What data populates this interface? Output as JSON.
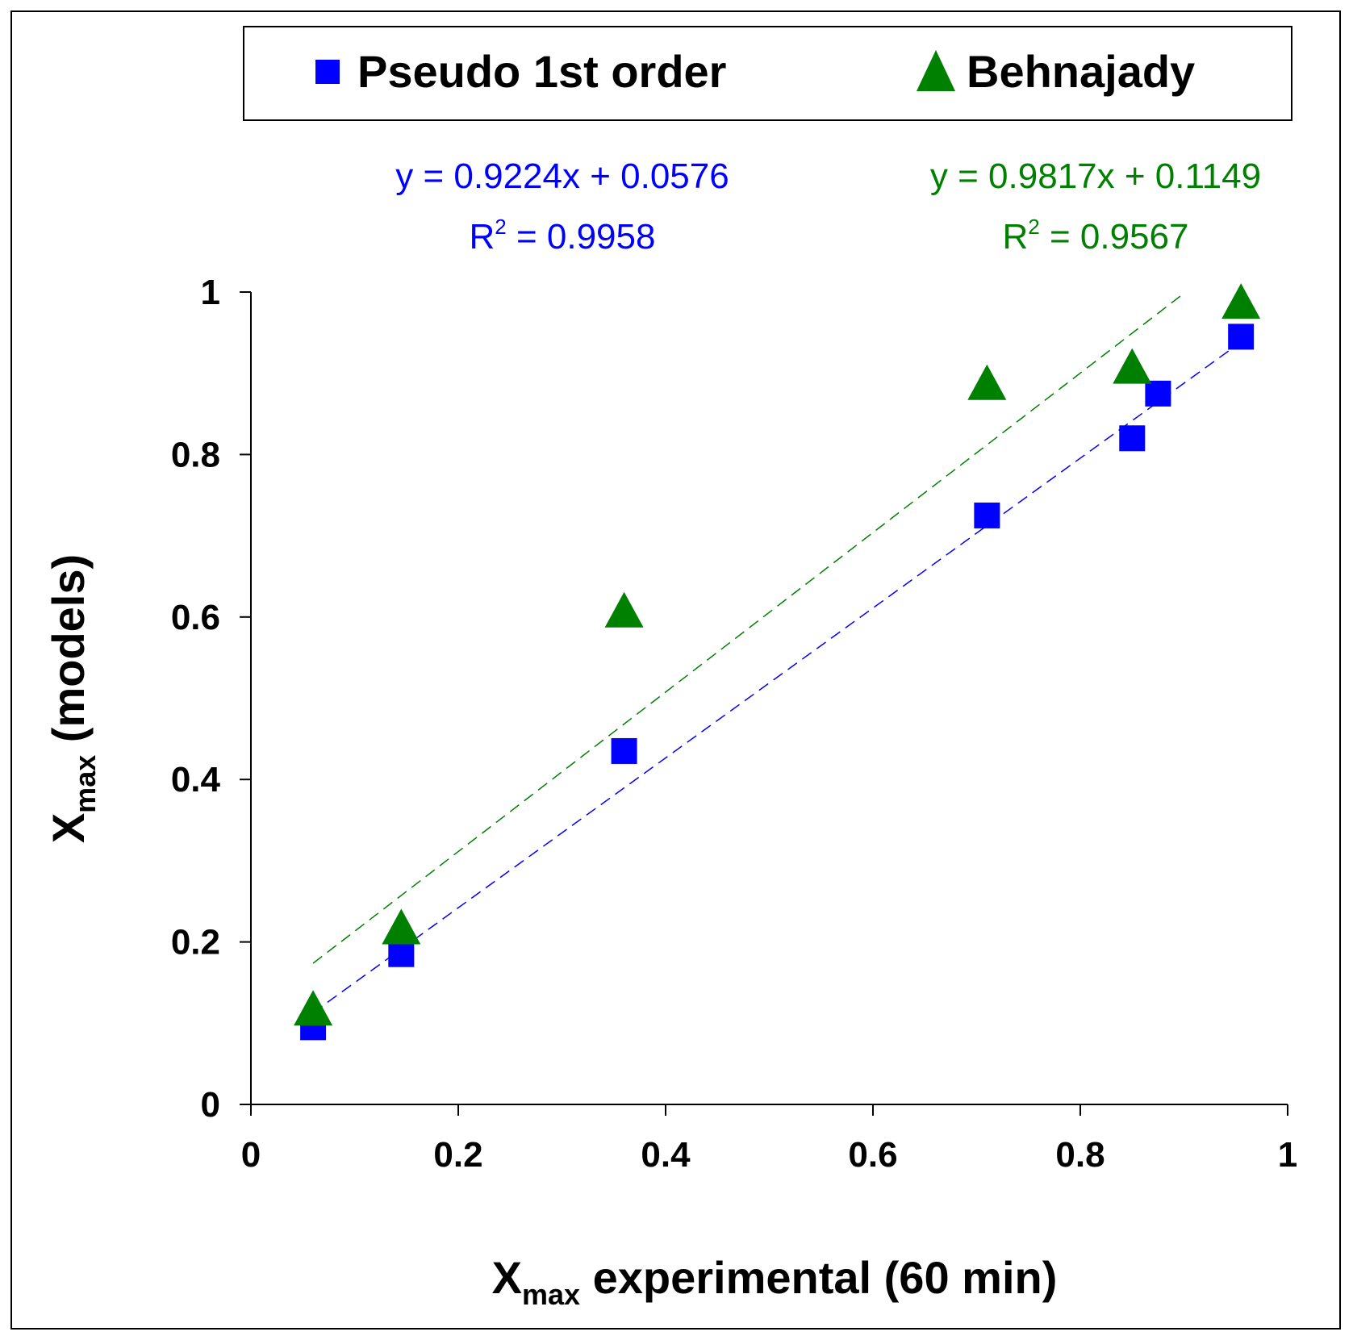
{
  "chart_data": {
    "type": "scatter",
    "xlabel": {
      "main": "X",
      "sub": "max",
      "rest": " experimental (60 min)"
    },
    "ylabel": {
      "main": "X",
      "sub": "max",
      "rest": " (models)"
    },
    "xlim": [
      0,
      1
    ],
    "ylim": [
      0,
      1
    ],
    "x_ticks": [
      0,
      0.2,
      0.4,
      0.6,
      0.8,
      1
    ],
    "y_ticks": [
      0,
      0.2,
      0.4,
      0.6,
      0.8,
      1
    ],
    "x_tick_labels": [
      "0",
      "0.2",
      "0.4",
      "0.6",
      "0.8",
      "1"
    ],
    "y_tick_labels": [
      "0",
      "0.2",
      "0.4",
      "0.6",
      "0.8",
      "1"
    ],
    "grid": false,
    "legend_position": "top",
    "series": [
      {
        "name": "Pseudo 1st order",
        "marker": "square",
        "color": "#0000ff",
        "x": [
          0.06,
          0.145,
          0.36,
          0.71,
          0.85,
          0.875,
          0.955
        ],
        "y": [
          0.095,
          0.185,
          0.435,
          0.725,
          0.82,
          0.875,
          0.945
        ],
        "trendline": {
          "slope": 0.9224,
          "intercept": 0.0576,
          "x_range": [
            0.06,
            0.955
          ]
        },
        "equation": "y = 0.9224x + 0.0576",
        "r2_prefix": "R",
        "r2_sup": "2",
        "r2_value": " = 0.9958"
      },
      {
        "name": "Behnajady",
        "marker": "triangle",
        "color": "#008000",
        "x": [
          0.06,
          0.145,
          0.36,
          0.71,
          0.85,
          0.955
        ],
        "y": [
          0.115,
          0.215,
          0.605,
          0.885,
          0.905,
          0.985
        ],
        "trendline": {
          "slope": 0.9817,
          "intercept": 0.1149,
          "x_range": [
            0.06,
            0.9
          ]
        },
        "equation": "y = 0.9817x + 0.1149",
        "r2_prefix": "R",
        "r2_sup": "2",
        "r2_value": " = 0.9567"
      }
    ]
  }
}
